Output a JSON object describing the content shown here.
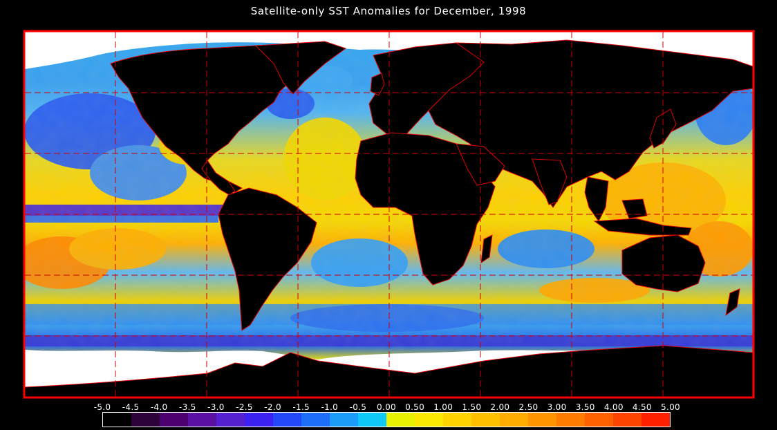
{
  "title": "Satellite-only SST Anomalies for December, 1998",
  "colors": {
    "background": "#000000",
    "land": "#000000",
    "ice": "#ffffff",
    "frame": "#ff0000",
    "coastlines": "#e00000",
    "gridlines": "#d00000"
  },
  "colorbar": {
    "tick_labels": [
      "-5.0",
      "-4.5",
      "-4.0",
      "-3.5",
      "-3.0",
      "-2.5",
      "-2.0",
      "-1.5",
      "-1.0",
      "-0.5",
      "0.00",
      "0.50",
      "1.00",
      "1.50",
      "2.00",
      "2.50",
      "3.00",
      "3.50",
      "4.00",
      "4.50",
      "5.00"
    ],
    "bins": [
      {
        "range": [
          -5.0,
          -4.5
        ],
        "color": "#000000"
      },
      {
        "range": [
          -4.5,
          -4.0
        ],
        "color": "#2c0038"
      },
      {
        "range": [
          -4.0,
          -3.5
        ],
        "color": "#4d0070"
      },
      {
        "range": [
          -3.5,
          -3.0
        ],
        "color": "#5a10a0"
      },
      {
        "range": [
          -3.0,
          -2.5
        ],
        "color": "#5520d0"
      },
      {
        "range": [
          -2.5,
          -2.0
        ],
        "color": "#3b22f0"
      },
      {
        "range": [
          -2.0,
          -1.5
        ],
        "color": "#2448f8"
      },
      {
        "range": [
          -1.5,
          -1.0
        ],
        "color": "#1e6ef8"
      },
      {
        "range": [
          -1.0,
          -0.5
        ],
        "color": "#1c9cf8"
      },
      {
        "range": [
          -0.5,
          0.0
        ],
        "color": "#10c8f8"
      },
      {
        "range": [
          0.0,
          0.5
        ],
        "color": "#e6f000"
      },
      {
        "range": [
          0.5,
          1.0
        ],
        "color": "#fae800"
      },
      {
        "range": [
          1.0,
          1.5
        ],
        "color": "#ffd200"
      },
      {
        "range": [
          1.5,
          2.0
        ],
        "color": "#ffc000"
      },
      {
        "range": [
          2.0,
          2.5
        ],
        "color": "#ffac00"
      },
      {
        "range": [
          2.5,
          3.0
        ],
        "color": "#ff9400"
      },
      {
        "range": [
          3.0,
          3.5
        ],
        "color": "#ff7c00"
      },
      {
        "range": [
          3.5,
          4.0
        ],
        "color": "#ff6000"
      },
      {
        "range": [
          4.0,
          4.5
        ],
        "color": "#ff4400"
      },
      {
        "range": [
          4.5,
          5.0
        ],
        "color": "#ff2000"
      }
    ]
  },
  "map": {
    "projection": "equirectangular",
    "lon_range": [
      -180,
      180
    ],
    "lat_range": [
      -90,
      90
    ],
    "grid_lons": [
      -135,
      -90,
      -45,
      0,
      45,
      90,
      135
    ],
    "grid_lats": [
      -60,
      -30,
      0,
      30,
      60
    ]
  }
}
